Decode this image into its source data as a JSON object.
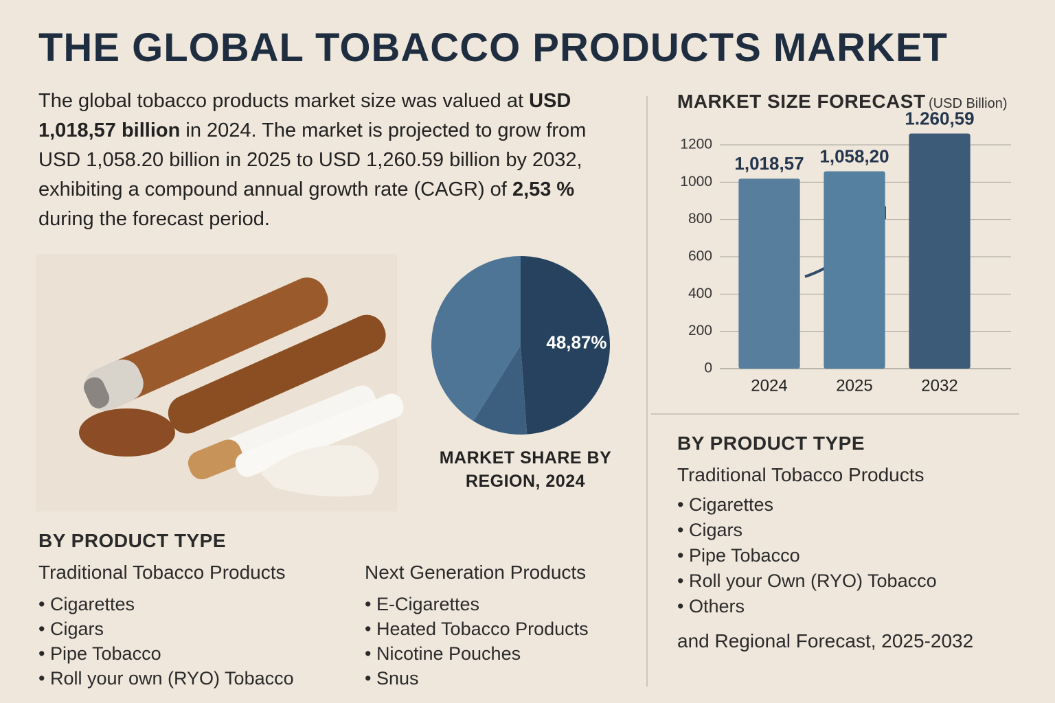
{
  "title": "THE GLOBAL TOBACCO PRODUCTS MARKET",
  "intro": [
    "The global tobacco products market size was valued at ",
    "USD 1,018,57 billion",
    " in 2024. The market is projected to grow from USD 1,058.20 billion in 2025 to USD 1,260.59 billion by 2032, exhibiting a compound annual growth rate (CAGR) of ",
    "2,53 %",
    " during the forecast period."
  ],
  "chart_data": [
    {
      "type": "bar",
      "title": "MARKET SIZE FORECAST",
      "subtitle": "(USD Billion)",
      "categories": [
        "2024",
        "2025",
        "2032"
      ],
      "values": [
        1018.57,
        1058.2,
        1260.59
      ],
      "value_labels": [
        "1,018,57",
        "1,058,20",
        "1.260,59"
      ],
      "colors": [
        "#587e9e",
        "#56809f",
        "#3b5b78"
      ],
      "ylim": [
        0,
        1300
      ],
      "yticks": [
        0,
        200,
        400,
        600,
        800,
        1000,
        1200
      ],
      "grid": true
    },
    {
      "type": "pie",
      "title": "MARKET SHARE BY REGION, 2024",
      "values": [
        48.87,
        10,
        41.13
      ],
      "value_labels": [
        "48,87%",
        null,
        null
      ],
      "colors": [
        "#26425e",
        "#3c5f80",
        "#4e7596"
      ]
    }
  ],
  "left_section": {
    "heading": "BY PRODUCT TYPE",
    "groups": [
      {
        "name": "Traditional Tobacco Products",
        "items": [
          "Cigarettes",
          "Cigars",
          "Pipe Tobacco",
          "Roll your own (RYO) Tobacco"
        ]
      },
      {
        "name": "Next Generation Products",
        "items": [
          "E-Cigarettes",
          "Heated Tobacco Products",
          "Nicotine Pouches",
          "Snus"
        ]
      }
    ]
  },
  "right_section": {
    "heading": "BY PRODUCT TYPE",
    "group": "Traditional Tobacco Products",
    "items": [
      "Cigarettes",
      "Cigars",
      "Pipe Tobacco",
      "Roll your Own (RYO) Tobacco",
      "Others"
    ],
    "footer": "and Regional Forecast, 2025-2032"
  }
}
